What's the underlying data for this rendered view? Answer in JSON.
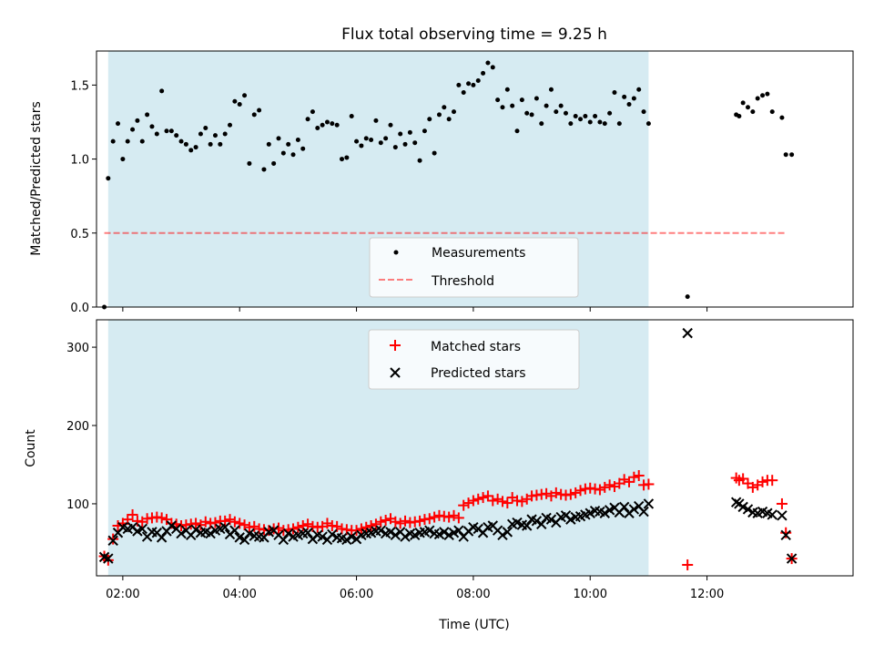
{
  "chart_data": [
    {
      "type": "scatter",
      "title": "Flux total observing time = 9.25 h",
      "xlabel": "",
      "ylabel": "Matched/Predicted stars",
      "ylim": [
        0,
        1.73
      ],
      "xlim": [
        "01:33",
        "14:30"
      ],
      "yticks": [
        "0.0",
        "0.5",
        "1.0",
        "1.5"
      ],
      "shaded_span": {
        "start": "01:45",
        "end": "11:00",
        "color": "#add8e6"
      },
      "threshold": {
        "label": "Threshold",
        "value": 0.5,
        "x_start": "01:41",
        "x_end": "13:21",
        "color": "#ff0000",
        "style": "dashed"
      },
      "legend": {
        "position": "lower center",
        "entries": [
          "Measurements",
          "Threshold"
        ]
      },
      "series": [
        {
          "name": "Measurements",
          "marker": "dot",
          "color": "#000000",
          "x": [
            "01:41",
            "01:45",
            "01:50",
            "01:55",
            "02:00",
            "02:05",
            "02:10",
            "02:15",
            "02:20",
            "02:25",
            "02:30",
            "02:35",
            "02:40",
            "02:45",
            "02:50",
            "02:55",
            "03:00",
            "03:05",
            "03:10",
            "03:15",
            "03:20",
            "03:25",
            "03:30",
            "03:35",
            "03:40",
            "03:45",
            "03:50",
            "03:55",
            "04:00",
            "04:05",
            "04:10",
            "04:15",
            "04:20",
            "04:25",
            "04:30",
            "04:35",
            "04:40",
            "04:45",
            "04:50",
            "04:55",
            "05:00",
            "05:05",
            "05:10",
            "05:15",
            "05:20",
            "05:25",
            "05:30",
            "05:35",
            "05:40",
            "05:45",
            "05:50",
            "05:55",
            "06:00",
            "06:05",
            "06:10",
            "06:15",
            "06:20",
            "06:25",
            "06:30",
            "06:35",
            "06:40",
            "06:45",
            "06:50",
            "06:55",
            "07:00",
            "07:05",
            "07:10",
            "07:15",
            "07:20",
            "07:25",
            "07:30",
            "07:35",
            "07:40",
            "07:45",
            "07:50",
            "07:55",
            "08:00",
            "08:05",
            "08:10",
            "08:15",
            "08:20",
            "08:25",
            "08:30",
            "08:35",
            "08:40",
            "08:45",
            "08:50",
            "08:55",
            "09:00",
            "09:05",
            "09:10",
            "09:15",
            "09:20",
            "09:25",
            "09:30",
            "09:35",
            "09:40",
            "09:45",
            "09:50",
            "09:55",
            "10:00",
            "10:05",
            "10:10",
            "10:15",
            "10:20",
            "10:25",
            "10:30",
            "10:35",
            "10:40",
            "10:45",
            "10:50",
            "10:55",
            "11:00",
            "11:40",
            "12:30",
            "12:33",
            "12:37",
            "12:42",
            "12:47",
            "12:52",
            "12:57",
            "13:02",
            "13:07",
            "13:17",
            "13:21",
            "13:27"
          ],
          "y": [
            0.0,
            0.87,
            1.12,
            1.24,
            1.0,
            1.12,
            1.2,
            1.26,
            1.12,
            1.3,
            1.22,
            1.17,
            1.46,
            1.19,
            1.19,
            1.16,
            1.12,
            1.1,
            1.06,
            1.08,
            1.17,
            1.21,
            1.1,
            1.16,
            1.1,
            1.17,
            1.23,
            1.39,
            1.37,
            1.43,
            0.97,
            1.3,
            1.33,
            0.93,
            1.1,
            0.97,
            1.14,
            1.04,
            1.1,
            1.03,
            1.13,
            1.07,
            1.27,
            1.32,
            1.21,
            1.23,
            1.25,
            1.24,
            1.23,
            1.0,
            1.01,
            1.29,
            1.12,
            1.09,
            1.14,
            1.13,
            1.26,
            1.11,
            1.14,
            1.23,
            1.08,
            1.17,
            1.1,
            1.18,
            1.11,
            0.99,
            1.19,
            1.27,
            1.04,
            1.3,
            1.35,
            1.27,
            1.32,
            1.5,
            1.45,
            1.51,
            1.5,
            1.53,
            1.58,
            1.65,
            1.62,
            1.4,
            1.35,
            1.47,
            1.36,
            1.19,
            1.4,
            1.31,
            1.3,
            1.41,
            1.24,
            1.36,
            1.47,
            1.32,
            1.36,
            1.31,
            1.24,
            1.29,
            1.27,
            1.29,
            1.25,
            1.29,
            1.25,
            1.24,
            1.31,
            1.45,
            1.24,
            1.42,
            1.37,
            1.41,
            1.47,
            1.32,
            1.24,
            0.07,
            1.3,
            1.29,
            1.38,
            1.35,
            1.32,
            1.41,
            1.43,
            1.44,
            1.32,
            1.28,
            1.03,
            1.03
          ]
        }
      ]
    },
    {
      "type": "scatter",
      "title": "",
      "xlabel": "Time (UTC)",
      "ylabel": "Count",
      "ylim": [
        8,
        335
      ],
      "xlim": [
        "01:33",
        "14:30"
      ],
      "xticks": [
        "02:00",
        "04:00",
        "06:00",
        "08:00",
        "10:00",
        "12:00"
      ],
      "yticks": [
        "100",
        "200",
        "300"
      ],
      "shaded_span": {
        "start": "01:45",
        "end": "11:00",
        "color": "#add8e6"
      },
      "legend": {
        "position": "upper center",
        "entries": [
          "Matched stars",
          "Predicted stars"
        ]
      },
      "series": [
        {
          "name": "Matched stars",
          "marker": "plus",
          "color": "#ff0000",
          "x": [
            "01:41",
            "01:45",
            "01:50",
            "01:55",
            "02:00",
            "02:05",
            "02:10",
            "02:15",
            "02:20",
            "02:25",
            "02:30",
            "02:35",
            "02:40",
            "02:45",
            "02:50",
            "02:55",
            "03:00",
            "03:05",
            "03:10",
            "03:15",
            "03:20",
            "03:25",
            "03:30",
            "03:35",
            "03:40",
            "03:45",
            "03:50",
            "03:55",
            "04:00",
            "04:05",
            "04:10",
            "04:15",
            "04:20",
            "04:25",
            "04:30",
            "04:35",
            "04:40",
            "04:45",
            "04:50",
            "04:55",
            "05:00",
            "05:05",
            "05:10",
            "05:15",
            "05:20",
            "05:25",
            "05:30",
            "05:35",
            "05:40",
            "05:45",
            "05:50",
            "05:55",
            "06:00",
            "06:05",
            "06:10",
            "06:15",
            "06:20",
            "06:25",
            "06:30",
            "06:35",
            "06:40",
            "06:45",
            "06:50",
            "06:55",
            "07:00",
            "07:05",
            "07:10",
            "07:15",
            "07:20",
            "07:25",
            "07:30",
            "07:35",
            "07:40",
            "07:45",
            "07:50",
            "07:55",
            "08:00",
            "08:05",
            "08:10",
            "08:15",
            "08:20",
            "08:25",
            "08:30",
            "08:35",
            "08:40",
            "08:45",
            "08:50",
            "08:55",
            "09:00",
            "09:05",
            "09:10",
            "09:15",
            "09:20",
            "09:25",
            "09:30",
            "09:35",
            "09:40",
            "09:45",
            "09:50",
            "09:55",
            "10:00",
            "10:05",
            "10:10",
            "10:15",
            "10:20",
            "10:25",
            "10:30",
            "10:35",
            "10:40",
            "10:45",
            "10:50",
            "10:55",
            "11:00",
            "11:40",
            "12:30",
            "12:33",
            "12:37",
            "12:42",
            "12:47",
            "12:52",
            "12:57",
            "13:02",
            "13:07",
            "13:17",
            "13:21",
            "13:27"
          ],
          "y": [
            33,
            28,
            55,
            72,
            75,
            80,
            86,
            78,
            77,
            81,
            82,
            83,
            82,
            80,
            75,
            74,
            72,
            73,
            74,
            75,
            73,
            77,
            75,
            76,
            78,
            78,
            80,
            77,
            75,
            73,
            70,
            71,
            68,
            67,
            66,
            68,
            69,
            66,
            67,
            68,
            70,
            72,
            74,
            71,
            70,
            71,
            75,
            72,
            71,
            68,
            67,
            66,
            66,
            68,
            70,
            72,
            74,
            77,
            79,
            81,
            77,
            75,
            78,
            76,
            77,
            78,
            80,
            81,
            83,
            85,
            84,
            83,
            85,
            82,
            98,
            101,
            104,
            106,
            108,
            110,
            104,
            106,
            103,
            101,
            108,
            104,
            103,
            106,
            110,
            111,
            112,
            113,
            110,
            114,
            112,
            111,
            112,
            114,
            117,
            119,
            120,
            119,
            118,
            121,
            124,
            122,
            126,
            131,
            128,
            134,
            136,
            124,
            125,
            22,
            133,
            130,
            132,
            126,
            121,
            124,
            128,
            130,
            130,
            100,
            63,
            30
          ]
        },
        {
          "name": "Predicted stars",
          "marker": "x",
          "color": "#000000",
          "x": [
            "01:41",
            "01:45",
            "01:50",
            "01:55",
            "02:00",
            "02:05",
            "02:10",
            "02:15",
            "02:20",
            "02:25",
            "02:30",
            "02:35",
            "02:40",
            "02:45",
            "02:50",
            "02:55",
            "03:00",
            "03:05",
            "03:10",
            "03:15",
            "03:20",
            "03:25",
            "03:30",
            "03:35",
            "03:40",
            "03:45",
            "03:50",
            "03:55",
            "04:00",
            "04:05",
            "04:10",
            "04:15",
            "04:20",
            "04:25",
            "04:30",
            "04:35",
            "04:40",
            "04:45",
            "04:50",
            "04:55",
            "05:00",
            "05:05",
            "05:10",
            "05:15",
            "05:20",
            "05:25",
            "05:30",
            "05:35",
            "05:40",
            "05:45",
            "05:50",
            "05:55",
            "06:00",
            "06:05",
            "06:10",
            "06:15",
            "06:20",
            "06:25",
            "06:30",
            "06:35",
            "06:40",
            "06:45",
            "06:50",
            "06:55",
            "07:00",
            "07:05",
            "07:10",
            "07:15",
            "07:20",
            "07:25",
            "07:30",
            "07:35",
            "07:40",
            "07:45",
            "07:50",
            "07:55",
            "08:00",
            "08:05",
            "08:10",
            "08:15",
            "08:20",
            "08:25",
            "08:30",
            "08:35",
            "08:40",
            "08:45",
            "08:50",
            "08:55",
            "09:00",
            "09:05",
            "09:10",
            "09:15",
            "09:20",
            "09:25",
            "09:30",
            "09:35",
            "09:40",
            "09:45",
            "09:50",
            "09:55",
            "10:00",
            "10:05",
            "10:10",
            "10:15",
            "10:20",
            "10:25",
            "10:30",
            "10:35",
            "10:40",
            "10:45",
            "10:50",
            "10:55",
            "11:00",
            "11:40",
            "12:30",
            "12:33",
            "12:37",
            "12:42",
            "12:47",
            "12:52",
            "12:57",
            "13:02",
            "13:07",
            "13:17",
            "13:21",
            "13:27"
          ],
          "y": [
            32,
            30,
            53,
            63,
            70,
            68,
            70,
            65,
            68,
            58,
            64,
            63,
            57,
            65,
            72,
            68,
            62,
            66,
            60,
            67,
            63,
            64,
            62,
            66,
            68,
            70,
            61,
            66,
            57,
            54,
            62,
            59,
            58,
            57,
            64,
            66,
            60,
            54,
            62,
            58,
            60,
            62,
            63,
            55,
            60,
            58,
            54,
            61,
            57,
            56,
            54,
            58,
            55,
            60,
            62,
            63,
            65,
            66,
            62,
            64,
            60,
            64,
            58,
            62,
            60,
            63,
            64,
            66,
            62,
            61,
            64,
            60,
            63,
            66,
            58,
            65,
            70,
            68,
            63,
            70,
            72,
            66,
            60,
            64,
            74,
            76,
            73,
            72,
            80,
            78,
            74,
            82,
            80,
            76,
            83,
            85,
            80,
            83,
            84,
            86,
            88,
            91,
            90,
            88,
            92,
            95,
            89,
            96,
            88,
            93,
            97,
            90,
            100,
            318,
            102,
            100,
            96,
            93,
            89,
            88,
            90,
            88,
            86,
            85,
            60,
            30
          ]
        }
      ]
    }
  ]
}
